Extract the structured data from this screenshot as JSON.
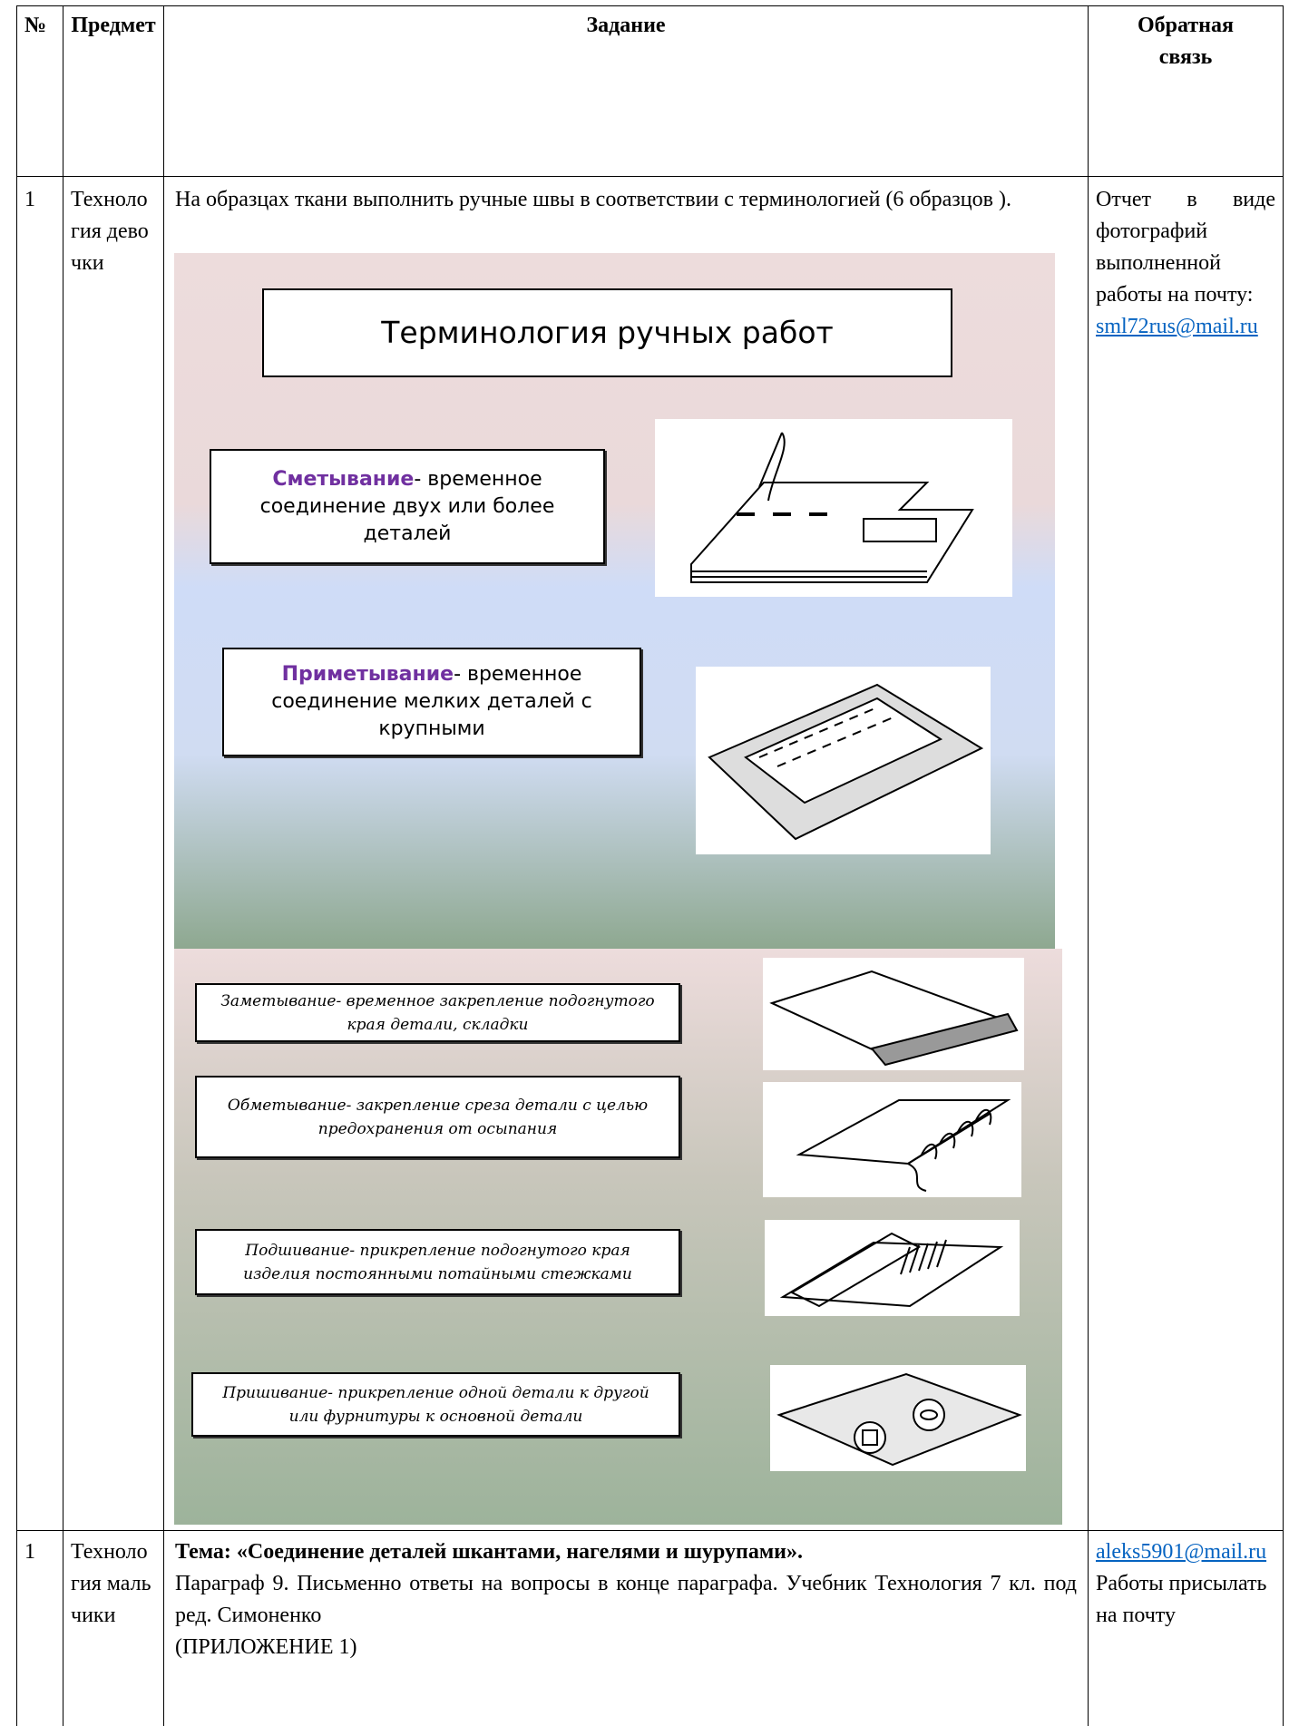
{
  "table": {
    "header": [
      "№",
      "Предмет",
      "Задание",
      "Обратная связь"
    ],
    "rows": [
      {
        "number": "1",
        "subject": "Технология девочки",
        "task": "На образцах ткани выполнить ручные швы в соответствии с терминологией (6 образцов ).",
        "feedback": "Отчет в виде фотографий выполненной работы на почту:",
        "email": "sml72rus@mail.ru"
      },
      {
        "number": "1",
        "subject": "Технология мальчики",
        "topic": "Тема: «Соединение деталей шкантами, нагелями и шурупами».",
        "task": "Параграф 9. Письменно ответы на вопросы в конце параграфа. Учебник Технология 7 кл. под ред. Симоненко",
        "appendix": "(ПРИЛОЖЕНИЕ 1)",
        "email": "aleks5901@mail.ru",
        "feedback": "Работы присылать на почту"
      }
    ]
  },
  "poster": {
    "title": "Терминология ручных работ",
    "terms": [
      {
        "term": "Сметывание",
        "definition": "- временное соединение двух или более деталей"
      },
      {
        "term": "Приметывание",
        "definition": "- временное соединение мелких деталей с крупными"
      },
      {
        "term": "Заметывание",
        "definition": "- временное закрепление подогнутого края детали, складки"
      },
      {
        "term": "Обметывание",
        "definition": "- закрепление среза детали с целью предохранения от осыпания"
      },
      {
        "term": "Подшивание",
        "definition": "- прикрепление подогнутого края изделия постоянными потайными стежками"
      },
      {
        "term": "Пришивание",
        "definition": "- прикрепление одной детали к другой или фурнитуры к основной детали"
      }
    ]
  }
}
